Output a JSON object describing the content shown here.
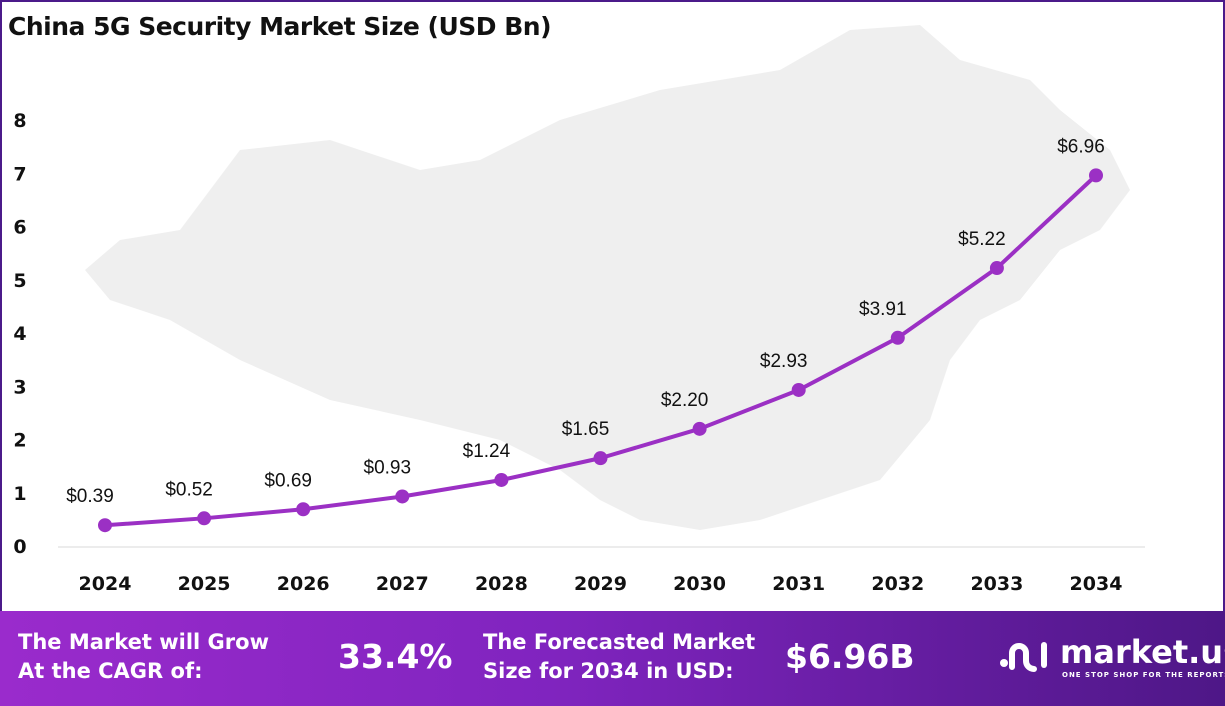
{
  "chart_data": {
    "type": "line",
    "title": "China 5G Security Market Size (USD Bn)",
    "categories": [
      "2024",
      "2025",
      "2026",
      "2027",
      "2028",
      "2029",
      "2030",
      "2031",
      "2032",
      "2033",
      "2034"
    ],
    "values": [
      0.39,
      0.52,
      0.69,
      0.93,
      1.24,
      1.65,
      2.2,
      2.93,
      3.91,
      5.22,
      6.96
    ],
    "data_labels": [
      "$0.39",
      "$0.52",
      "$0.69",
      "$0.93",
      "$1.24",
      "$1.65",
      "$2.20",
      "$2.93",
      "$3.91",
      "$5.22",
      "$6.96"
    ],
    "yticks": [
      "0",
      "1",
      "2",
      "3",
      "4",
      "5",
      "6",
      "7",
      "8"
    ],
    "ylim": [
      0,
      8
    ],
    "grid": false,
    "line_color": "#9b30c4"
  },
  "footer": {
    "cagr_label_1": "The Market will Grow",
    "cagr_label_2": "At the CAGR of:",
    "cagr_value": "33.4%",
    "forecast_label_1": "The Forecasted Market",
    "forecast_label_2": "Size for 2034 in USD:",
    "forecast_value": "$6.96B",
    "logo_name": "market.us",
    "logo_tagline": "ONE STOP SHOP FOR THE REPORTS"
  }
}
